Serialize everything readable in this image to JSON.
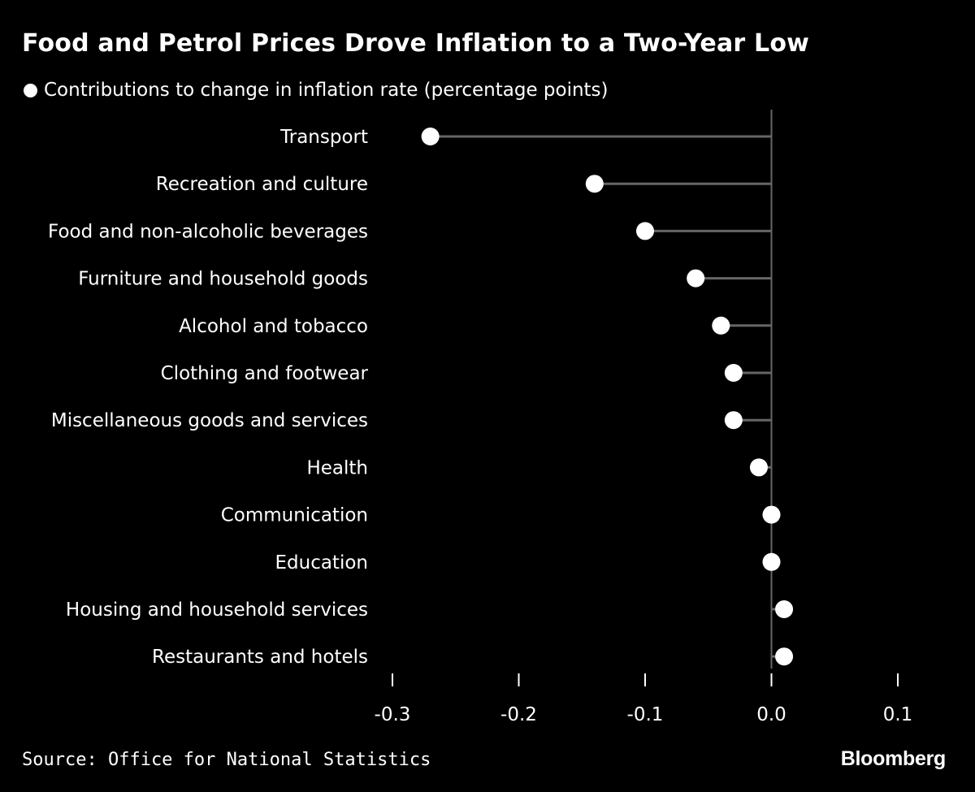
{
  "chart_data": {
    "type": "lollipop",
    "title": "Food and Petrol Prices Drove Inflation to a Two-Year Low",
    "legend": "Contributions to change in inflation rate (percentage points)",
    "categories": [
      "Transport",
      "Recreation and culture",
      "Food and non-alcoholic beverages",
      "Furniture and household goods",
      "Alcohol and tobacco",
      "Clothing and footwear",
      "Miscellaneous goods and services",
      "Health",
      "Communication",
      "Education",
      "Housing and household services",
      "Restaurants and hotels"
    ],
    "values": [
      -0.27,
      -0.14,
      -0.1,
      -0.06,
      -0.04,
      -0.03,
      -0.03,
      -0.01,
      0.0,
      0.0,
      0.01,
      0.01
    ],
    "xlim": [
      -0.3,
      0.1
    ],
    "xticks": [
      -0.3,
      -0.2,
      -0.1,
      0.0,
      0.1
    ],
    "xtick_labels": [
      "-0.3",
      "-0.2",
      "-0.1",
      "0.0",
      "0.1"
    ],
    "xlabel": "",
    "ylabel": "",
    "grid": false
  },
  "footer": {
    "source": "Source: Office for National Statistics",
    "brand": "Bloomberg"
  },
  "colors": {
    "background": "#000000",
    "marker": "#ffffff",
    "stem": "#666666",
    "axis": "#666666",
    "text": "#ffffff"
  }
}
